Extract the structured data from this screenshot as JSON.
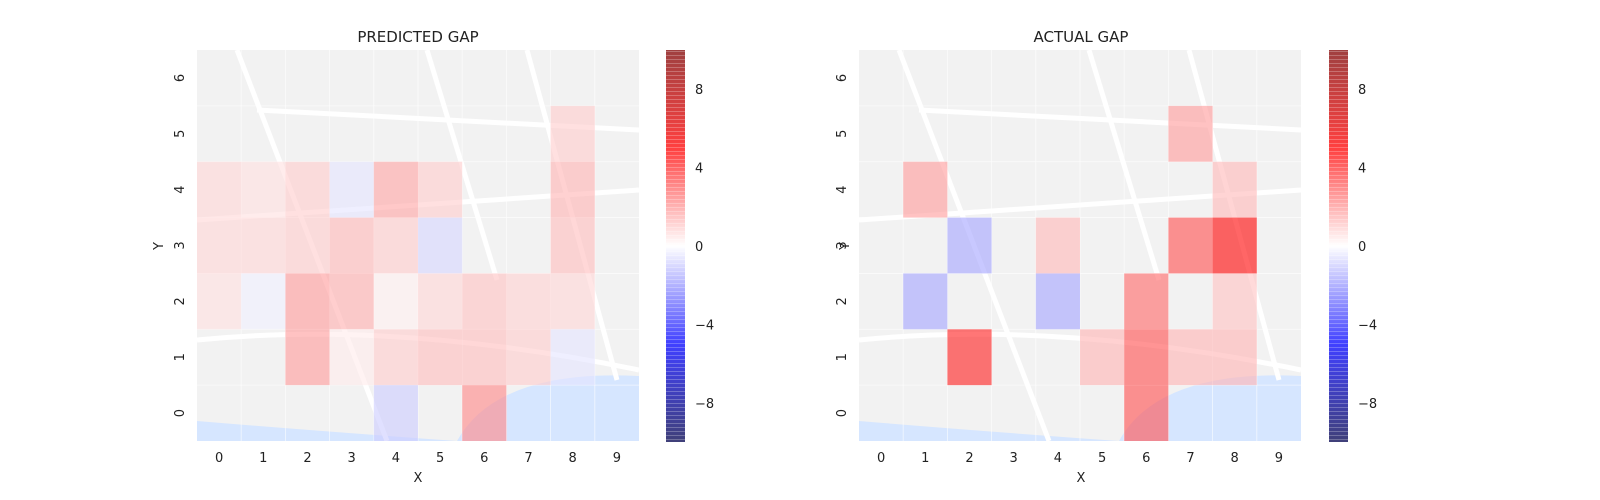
{
  "chart_data": [
    {
      "type": "heatmap",
      "title": "PREDICTED GAP",
      "xlabel": "X",
      "ylabel": "Y",
      "x_ticks": [
        "0",
        "1",
        "2",
        "3",
        "4",
        "5",
        "6",
        "7",
        "8",
        "9"
      ],
      "y_ticks": [
        "0",
        "1",
        "2",
        "3",
        "4",
        "5",
        "6"
      ],
      "background": "street map (light, translucent)",
      "colormap": "seismic",
      "vmin": -10,
      "vmax": 10,
      "colorbar_ticks": [
        "8",
        "4",
        "0",
        "−4",
        "−8"
      ],
      "cells": [
        {
          "x": 0,
          "y": 4,
          "v": 0.8
        },
        {
          "x": 1,
          "y": 4,
          "v": 0.6
        },
        {
          "x": 2,
          "y": 4,
          "v": 1.0
        },
        {
          "x": 3,
          "y": 4,
          "v": -0.5
        },
        {
          "x": 4,
          "y": 4,
          "v": 1.8
        },
        {
          "x": 5,
          "y": 4,
          "v": 1.0
        },
        {
          "x": 8,
          "y": 5,
          "v": 1.0
        },
        {
          "x": 8,
          "y": 4,
          "v": 1.5
        },
        {
          "x": 0,
          "y": 3,
          "v": 0.8
        },
        {
          "x": 1,
          "y": 3,
          "v": 0.8
        },
        {
          "x": 2,
          "y": 3,
          "v": 1.0
        },
        {
          "x": 3,
          "y": 3,
          "v": 1.4
        },
        {
          "x": 4,
          "y": 3,
          "v": 1.0
        },
        {
          "x": 5,
          "y": 3,
          "v": -0.8
        },
        {
          "x": 8,
          "y": 3,
          "v": 1.3
        },
        {
          "x": 0,
          "y": 2,
          "v": 0.6
        },
        {
          "x": 1,
          "y": 2,
          "v": -0.3
        },
        {
          "x": 2,
          "y": 2,
          "v": 2.0
        },
        {
          "x": 3,
          "y": 2,
          "v": 1.6
        },
        {
          "x": 4,
          "y": 2,
          "v": 0.3
        },
        {
          "x": 5,
          "y": 2,
          "v": 0.8
        },
        {
          "x": 6,
          "y": 2,
          "v": 1.2
        },
        {
          "x": 7,
          "y": 2,
          "v": 0.9
        },
        {
          "x": 8,
          "y": 2,
          "v": 0.8
        },
        {
          "x": 2,
          "y": 1,
          "v": 2.0
        },
        {
          "x": 3,
          "y": 1,
          "v": 0.4
        },
        {
          "x": 4,
          "y": 1,
          "v": 1.0
        },
        {
          "x": 5,
          "y": 1,
          "v": 1.3
        },
        {
          "x": 6,
          "y": 1,
          "v": 1.3
        },
        {
          "x": 7,
          "y": 1,
          "v": 1.0
        },
        {
          "x": 8,
          "y": 1,
          "v": -0.5
        },
        {
          "x": 4,
          "y": 0,
          "v": -1.0
        },
        {
          "x": 6,
          "y": 0,
          "v": 2.4
        }
      ]
    },
    {
      "type": "heatmap",
      "title": "ACTUAL GAP",
      "xlabel": "X",
      "ylabel": "Y",
      "x_ticks": [
        "0",
        "1",
        "2",
        "3",
        "4",
        "5",
        "6",
        "7",
        "8",
        "9"
      ],
      "y_ticks": [
        "0",
        "1",
        "2",
        "3",
        "4",
        "5",
        "6"
      ],
      "background": "street map (light, translucent)",
      "colormap": "seismic",
      "vmin": -10,
      "vmax": 10,
      "colorbar_ticks": [
        "8",
        "4",
        "0",
        "−4",
        "−8"
      ],
      "cells": [
        {
          "x": 7,
          "y": 5,
          "v": 2.0
        },
        {
          "x": 1,
          "y": 4,
          "v": 2.0
        },
        {
          "x": 8,
          "y": 4,
          "v": 1.4
        },
        {
          "x": 2,
          "y": 3,
          "v": -1.8
        },
        {
          "x": 4,
          "y": 3,
          "v": 1.4
        },
        {
          "x": 7,
          "y": 3,
          "v": 3.5
        },
        {
          "x": 8,
          "y": 3,
          "v": 5.0
        },
        {
          "x": 1,
          "y": 2,
          "v": -1.8
        },
        {
          "x": 4,
          "y": 2,
          "v": -1.8
        },
        {
          "x": 6,
          "y": 2,
          "v": 3.0
        },
        {
          "x": 8,
          "y": 2,
          "v": 1.2
        },
        {
          "x": 2,
          "y": 1,
          "v": 4.5
        },
        {
          "x": 5,
          "y": 1,
          "v": 1.5
        },
        {
          "x": 6,
          "y": 1,
          "v": 3.5
        },
        {
          "x": 7,
          "y": 1,
          "v": 1.5
        },
        {
          "x": 8,
          "y": 1,
          "v": 1.5
        },
        {
          "x": 6,
          "y": 0,
          "v": 3.5
        }
      ]
    }
  ]
}
